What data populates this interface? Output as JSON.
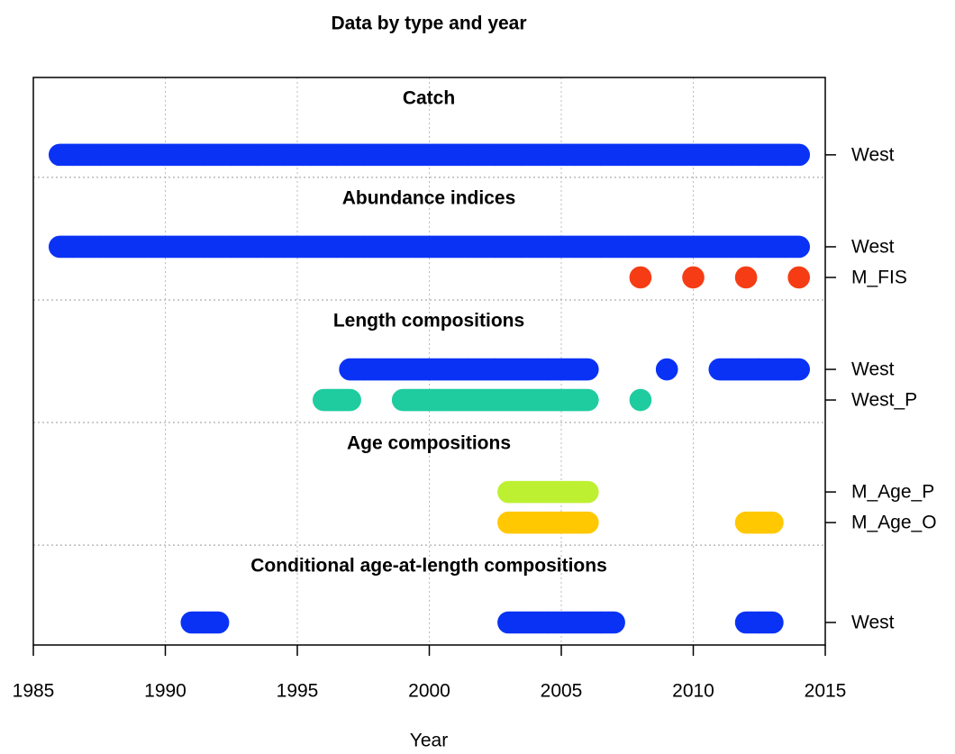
{
  "chart_data": {
    "type": "timeline",
    "title": "Data by type and year",
    "xlabel": "Year",
    "xlim": [
      1985,
      2015
    ],
    "xticks": [
      1985,
      1990,
      1995,
      2000,
      2005,
      2010,
      2015
    ],
    "grid": true,
    "panels": [
      {
        "title": "Catch",
        "series": [
          {
            "name": "West",
            "color": "#0a32f5",
            "years": [
              1986,
              1987,
              1988,
              1989,
              1990,
              1991,
              1992,
              1993,
              1994,
              1995,
              1996,
              1997,
              1998,
              1999,
              2000,
              2001,
              2002,
              2003,
              2004,
              2005,
              2006,
              2007,
              2008,
              2009,
              2010,
              2011,
              2012,
              2013,
              2014
            ]
          }
        ]
      },
      {
        "title": "Abundance indices",
        "series": [
          {
            "name": "West",
            "color": "#0a32f5",
            "years": [
              1986,
              1987,
              1988,
              1989,
              1990,
              1991,
              1992,
              1993,
              1994,
              1995,
              1996,
              1997,
              1998,
              1999,
              2000,
              2001,
              2002,
              2003,
              2004,
              2005,
              2006,
              2007,
              2008,
              2009,
              2010,
              2011,
              2012,
              2013,
              2014
            ]
          },
          {
            "name": "M_FIS",
            "color": "#f53c14",
            "years": [
              2008,
              2010,
              2012,
              2014
            ]
          }
        ]
      },
      {
        "title": "Length compositions",
        "series": [
          {
            "name": "West",
            "color": "#0a32f5",
            "years": [
              1997,
              1998,
              1999,
              2000,
              2001,
              2002,
              2003,
              2004,
              2005,
              2006,
              2009,
              2011,
              2012,
              2013,
              2014
            ]
          },
          {
            "name": "West_P",
            "color": "#1ecca0",
            "years": [
              1996,
              1997,
              1999,
              2000,
              2001,
              2002,
              2003,
              2004,
              2005,
              2006,
              2008
            ]
          }
        ]
      },
      {
        "title": "Age compositions",
        "series": [
          {
            "name": "M_Age_P",
            "color": "#bef032",
            "years": [
              2003,
              2004,
              2005,
              2006
            ]
          },
          {
            "name": "M_Age_O",
            "color": "#ffc800",
            "years": [
              2003,
              2004,
              2005,
              2006,
              2012,
              2013
            ]
          }
        ]
      },
      {
        "title": "Conditional age-at-length compositions",
        "series": [
          {
            "name": "West",
            "color": "#0a32f5",
            "years": [
              1991,
              1992,
              2003,
              2004,
              2005,
              2006,
              2007,
              2012,
              2013
            ]
          }
        ]
      }
    ]
  }
}
